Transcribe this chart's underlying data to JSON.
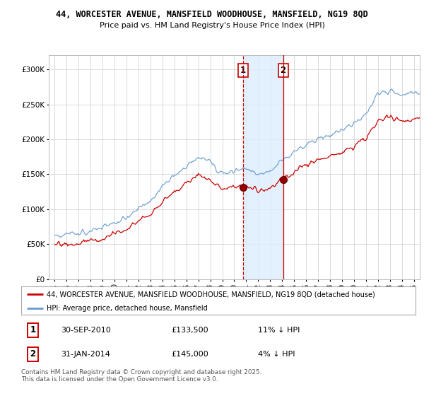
{
  "title_line1": "44, WORCESTER AVENUE, MANSFIELD WOODHOUSE, MANSFIELD, NG19 8QD",
  "title_line2": "Price paid vs. HM Land Registry's House Price Index (HPI)",
  "background_color": "#ffffff",
  "plot_bg_color": "#ffffff",
  "grid_color": "#cccccc",
  "legend_label_red": "44, WORCESTER AVENUE, MANSFIELD WOODHOUSE, MANSFIELD, NG19 8QD (detached house)",
  "legend_label_blue": "HPI: Average price, detached house, Mansfield",
  "sale1_date": "30-SEP-2010",
  "sale1_price": "£133,500",
  "sale1_hpi": "11% ↓ HPI",
  "sale2_date": "31-JAN-2014",
  "sale2_price": "£145,000",
  "sale2_hpi": "4% ↓ HPI",
  "footer": "Contains HM Land Registry data © Crown copyright and database right 2025.\nThis data is licensed under the Open Government Licence v3.0.",
  "red_color": "#cc0000",
  "blue_color": "#6699cc",
  "shaded_color": "#ddeeff",
  "marker_color": "#cc0000",
  "dashed_line_color": "#cc0000",
  "ylim_min": 0,
  "ylim_max": 320000,
  "x_start_year": 1995,
  "x_end_year": 2025,
  "sale1_year": 2010.75,
  "sale2_year": 2014.08,
  "sale1_price_val": 133500,
  "sale2_price_val": 145000
}
